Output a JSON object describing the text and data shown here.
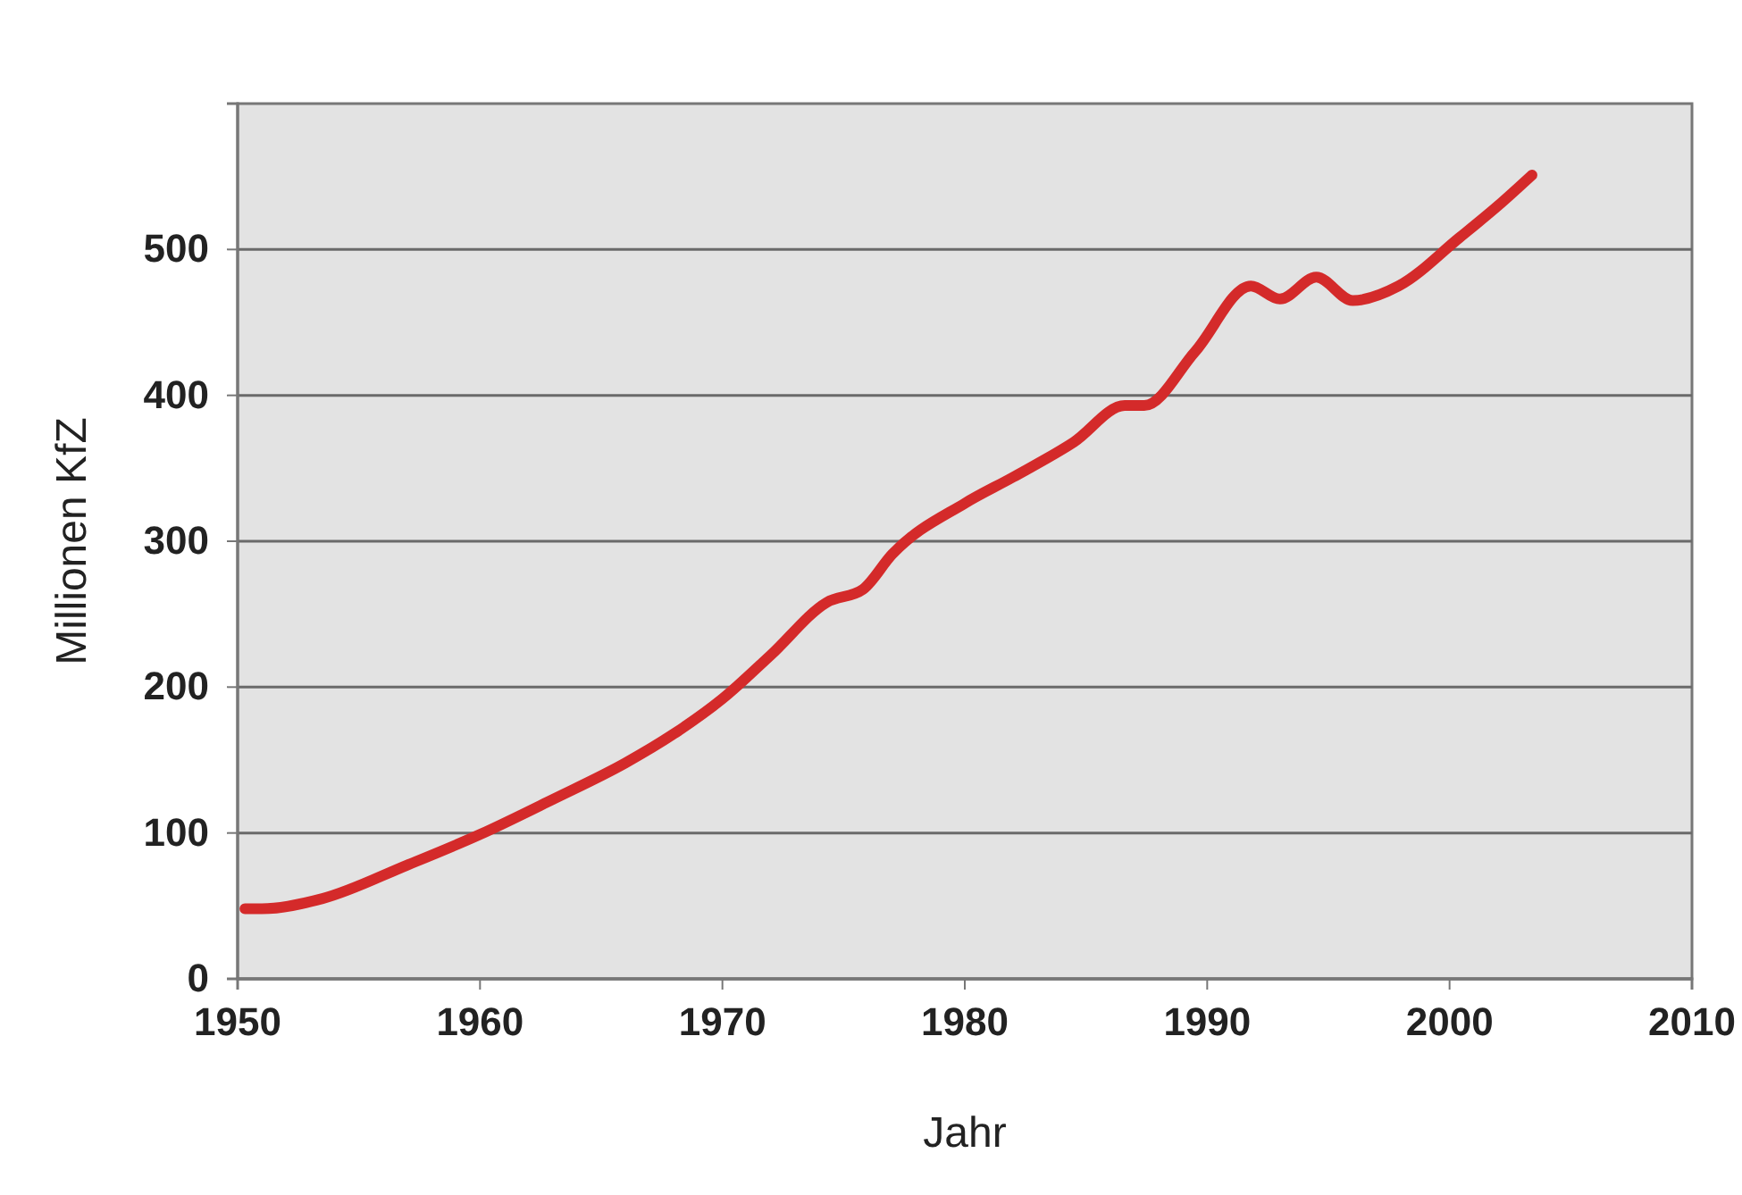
{
  "chart_data": {
    "type": "line",
    "xlabel": "Jahr",
    "ylabel": "Millionen KfZ",
    "x": [
      1950.3,
      1951,
      1953.5,
      1957,
      1960,
      1963,
      1966,
      1968,
      1970,
      1972,
      1974.3,
      1975.8,
      1977,
      1980,
      1982,
      1984.5,
      1986.6,
      1987.4,
      1989.5,
      1991.8,
      1993,
      1994.5,
      1996,
      1997.9,
      2000.4,
      2002,
      2003.4
    ],
    "series": [
      {
        "color": "#d42a2a",
        "values": [
          48,
          48,
          55,
          78,
          99,
          123,
          148,
          168,
          192,
          222,
          258,
          267,
          291,
          326,
          344,
          368,
          393,
          393,
          430,
          475,
          466,
          481,
          465,
          475,
          508,
          530,
          551
        ]
      }
    ],
    "xlim": [
      1950,
      2010
    ],
    "xticks": [
      1950,
      1960,
      1970,
      1980,
      1990,
      2000,
      2010
    ],
    "ylim": [
      0,
      600
    ],
    "yticks": [
      0,
      100,
      200,
      300,
      400,
      500
    ],
    "grid": "y",
    "marker": "none",
    "line_style": "solid"
  }
}
